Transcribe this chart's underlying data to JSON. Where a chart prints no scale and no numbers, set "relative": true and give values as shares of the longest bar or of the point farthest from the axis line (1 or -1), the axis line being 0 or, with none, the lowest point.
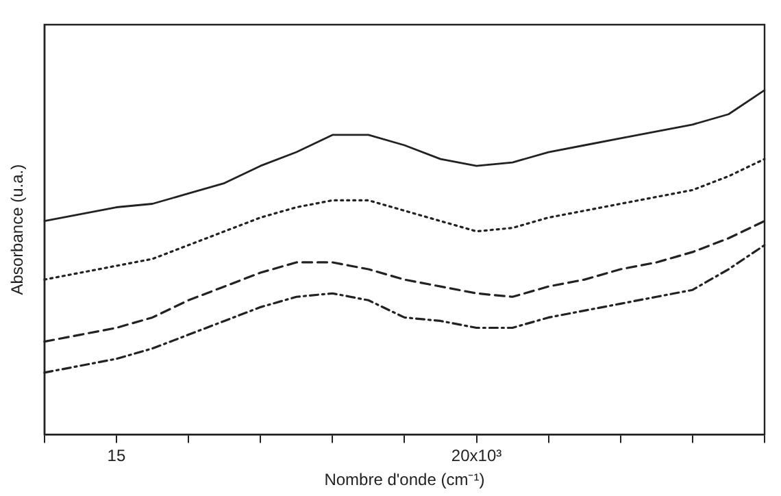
{
  "chart_data": {
    "type": "line",
    "relative": true,
    "xlabel": "Nombre d'onde (cm⁻¹)",
    "ylabel": "Absorbance (u.a.)",
    "categories": [
      null,
      null,
      "15",
      null,
      null,
      null,
      null,
      null,
      null,
      null,
      null,
      null,
      "20x10³",
      null,
      null,
      null,
      null,
      null,
      null,
      null,
      null
    ],
    "grid": false,
    "legend": false,
    "marker": "none",
    "series": [
      {
        "color": "#222222",
        "line_style": "solid",
        "values": [
          0.62,
          0.64,
          0.66,
          0.67,
          0.7,
          0.73,
          0.78,
          0.82,
          0.87,
          0.87,
          0.84,
          0.8,
          0.78,
          0.79,
          0.82,
          0.84,
          0.86,
          0.88,
          0.9,
          0.93,
          1.0
        ]
      },
      {
        "color": "#222222",
        "line_style": "dotted",
        "values": [
          0.45,
          0.47,
          0.49,
          0.51,
          0.55,
          0.59,
          0.63,
          0.66,
          0.68,
          0.68,
          0.65,
          0.62,
          0.59,
          0.6,
          0.63,
          0.65,
          0.67,
          0.69,
          0.71,
          0.75,
          0.8
        ]
      },
      {
        "color": "#222222",
        "line_style": "dashed",
        "values": [
          0.27,
          0.29,
          0.31,
          0.34,
          0.39,
          0.43,
          0.47,
          0.5,
          0.5,
          0.48,
          0.45,
          0.43,
          0.41,
          0.4,
          0.43,
          0.45,
          0.48,
          0.5,
          0.53,
          0.57,
          0.62
        ]
      },
      {
        "color": "#222222",
        "line_style": "dashdot",
        "values": [
          0.18,
          0.2,
          0.22,
          0.25,
          0.29,
          0.33,
          0.37,
          0.4,
          0.41,
          0.39,
          0.34,
          0.33,
          0.31,
          0.31,
          0.34,
          0.36,
          0.38,
          0.4,
          0.42,
          0.48,
          0.55
        ]
      }
    ]
  }
}
